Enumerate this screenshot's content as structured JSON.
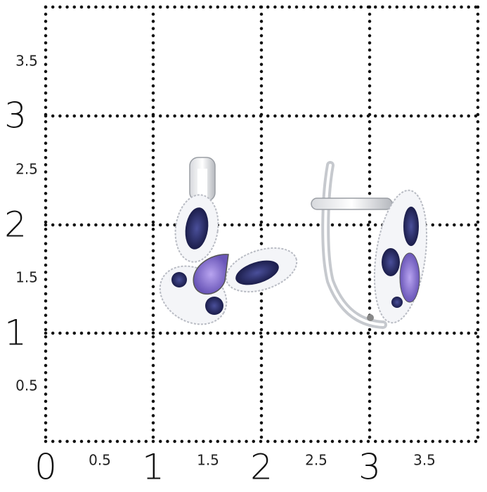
{
  "x_axis": {
    "major_labels": [
      "0",
      "1",
      "2",
      "3"
    ],
    "minor_labels": [
      "0.5",
      "1.5",
      "2.5",
      "3.5"
    ]
  },
  "y_axis": {
    "major_labels": [
      "1",
      "2",
      "3"
    ],
    "minor_labels": [
      "0.5",
      "1.5",
      "2.5",
      "3.5"
    ]
  }
}
